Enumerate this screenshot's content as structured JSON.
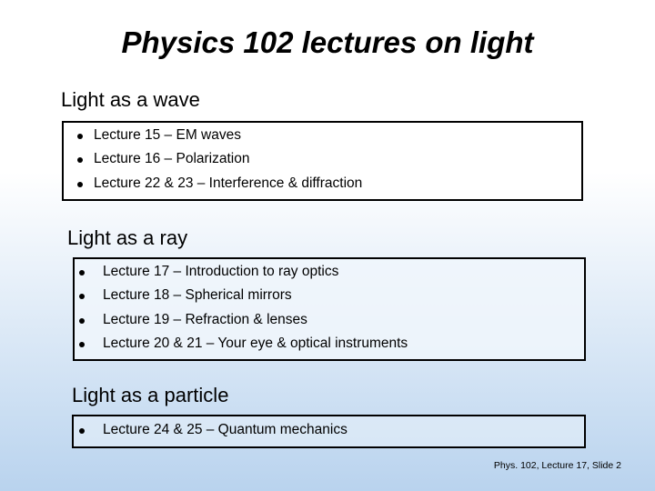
{
  "title": "Physics 102 lectures on light",
  "sections": [
    {
      "heading": "Light as a wave",
      "items": [
        "Lecture 15 – EM waves",
        "Lecture 16 – Polarization",
        "Lecture 22 & 23 – Interference & diffraction"
      ]
    },
    {
      "heading": "Light as a ray",
      "items": [
        "Lecture 17 – Introduction to ray optics",
        "Lecture 18 – Spherical mirrors",
        "Lecture 19 – Refraction & lenses",
        "Lecture 20 & 21 – Your eye & optical instruments"
      ]
    },
    {
      "heading": "Light as a particle",
      "items": [
        "Lecture 24 & 25 – Quantum mechanics"
      ]
    }
  ],
  "footer": "Phys. 102, Lecture 17, Slide 2"
}
